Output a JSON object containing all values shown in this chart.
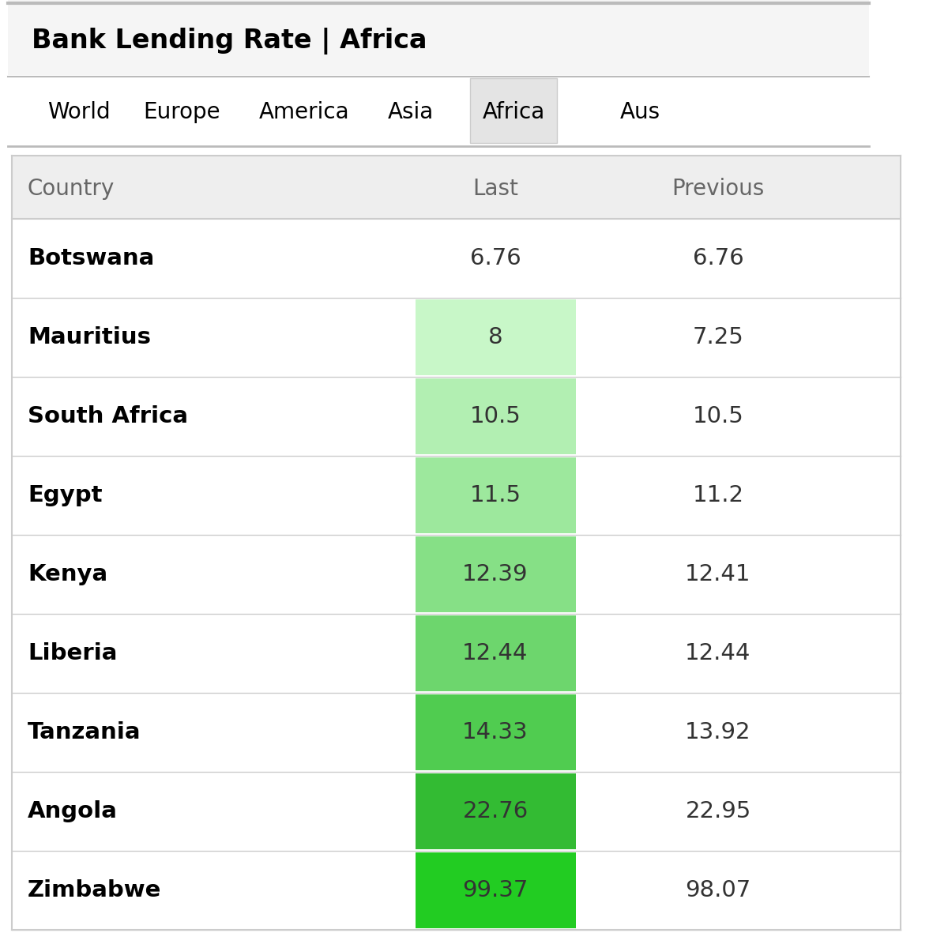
{
  "title": "Bank Lending Rate | Africa",
  "nav_tabs": [
    "World",
    "Europe",
    "America",
    "Asia",
    "Africa",
    "Aus"
  ],
  "active_tab": "Africa",
  "col_headers": [
    "Country",
    "Last",
    "Previous"
  ],
  "rows": [
    {
      "country": "Botswana",
      "last": "6.76",
      "previous": "6.76",
      "last_bg": "#ffffff"
    },
    {
      "country": "Mauritius",
      "last": "8",
      "previous": "7.25",
      "last_bg": "#c8f7c8"
    },
    {
      "country": "South Africa",
      "last": "10.5",
      "previous": "10.5",
      "last_bg": "#b2efb2"
    },
    {
      "country": "Egypt",
      "last": "11.5",
      "previous": "11.2",
      "last_bg": "#9de89d"
    },
    {
      "country": "Kenya",
      "last": "12.39",
      "previous": "12.41",
      "last_bg": "#86e086"
    },
    {
      "country": "Liberia",
      "last": "12.44",
      "previous": "12.44",
      "last_bg": "#6dd66d"
    },
    {
      "country": "Tanzania",
      "last": "14.33",
      "previous": "13.92",
      "last_bg": "#50cc50"
    },
    {
      "country": "Angola",
      "last": "22.76",
      "previous": "22.95",
      "last_bg": "#33bb33"
    },
    {
      "country": "Zimbabwe",
      "last": "99.37",
      "previous": "98.07",
      "last_bg": "#22cc22"
    }
  ],
  "bg_color": "#ffffff",
  "header_bg": "#eeeeee",
  "title_bg": "#f5f5f5",
  "nav_bg": "#ffffff",
  "nav_active_bg": "#e4e4e4",
  "title_color": "#000000",
  "nav_color": "#000000",
  "header_color": "#666666",
  "country_color": "#000000",
  "data_color": "#333333",
  "top_line_color": "#bbbbbb",
  "sep_line_color": "#bbbbbb",
  "row_line_color": "#cccccc",
  "table_border_color": "#cccccc"
}
